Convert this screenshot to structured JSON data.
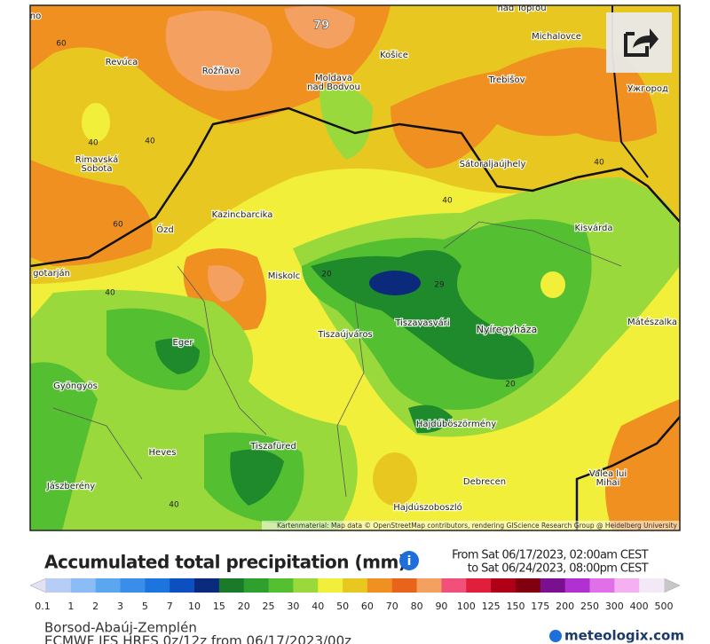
{
  "map": {
    "cities": [
      "nad Topľou",
      "Michalovce",
      "Revúca",
      "Rožňava",
      [
        "Moldava",
        "nad Bodvou"
      ],
      "Košice",
      "Trebišov",
      "Ужгород",
      [
        "Rimavská",
        "Sobota"
      ],
      "Sátoraljaújhely",
      "Kazincbarcika",
      "Ózd",
      "Kisvárda",
      "gotarján",
      "Miskolc",
      "Tiszavasvári",
      "Nyíregyháza",
      "Mátészalka",
      "Tiszaújváros",
      "Eger",
      "Gyöngyös",
      "Hajdúböszörmény",
      "Heves",
      "Tiszafüred",
      [
        "Valea lui",
        "Mihai"
      ],
      "Jászberény",
      "Debrecen",
      "Hajdúszoboszló",
      "no"
    ],
    "contour_labels": [
      "79",
      "60",
      "40",
      "40",
      "60",
      "40",
      "40",
      "40",
      "20",
      "29",
      "20",
      "40"
    ],
    "attribution": "Kartenmaterial: Map data © OpenStreetMap contributors, rendering GIScience Research Group @ Heidelberg University"
  },
  "legend": {
    "title": "Accumulated total precipitation (mm)",
    "period_from": "From Sat 06/17/2023, 02:00am CEST",
    "period_to": "to Sat 06/24/2023, 08:00pm CEST",
    "ticks": [
      "0.1",
      "1",
      "2",
      "3",
      "5",
      "7",
      "10",
      "15",
      "20",
      "25",
      "30",
      "40",
      "50",
      "60",
      "70",
      "80",
      "90",
      "100",
      "125",
      "150",
      "175",
      "200",
      "250",
      "300",
      "400",
      "500"
    ],
    "colors": [
      "#e2e2f6",
      "#b7cdf5",
      "#8cbcf5",
      "#5aa6ef",
      "#3a8eea",
      "#1d74df",
      "#0c4fc0",
      "#0b2a7c",
      "#1a7a2a",
      "#2f9f2e",
      "#55bf32",
      "#9ad93c",
      "#f2ef3a",
      "#e8c820",
      "#f09020",
      "#e8641a",
      "#f4a060",
      "#f0507a",
      "#e0203a",
      "#b00018",
      "#800010",
      "#7a1090",
      "#b030d0",
      "#e070e8",
      "#f4b0f0",
      "#f2e8f6",
      "#c8c8c8"
    ]
  },
  "footer": {
    "region": "Borsod-Abaúj-Zemplén",
    "model": "ECMWF IFS HRES 0z/12z from 06/17/2023/00z",
    "brand": "meteologix.com"
  }
}
